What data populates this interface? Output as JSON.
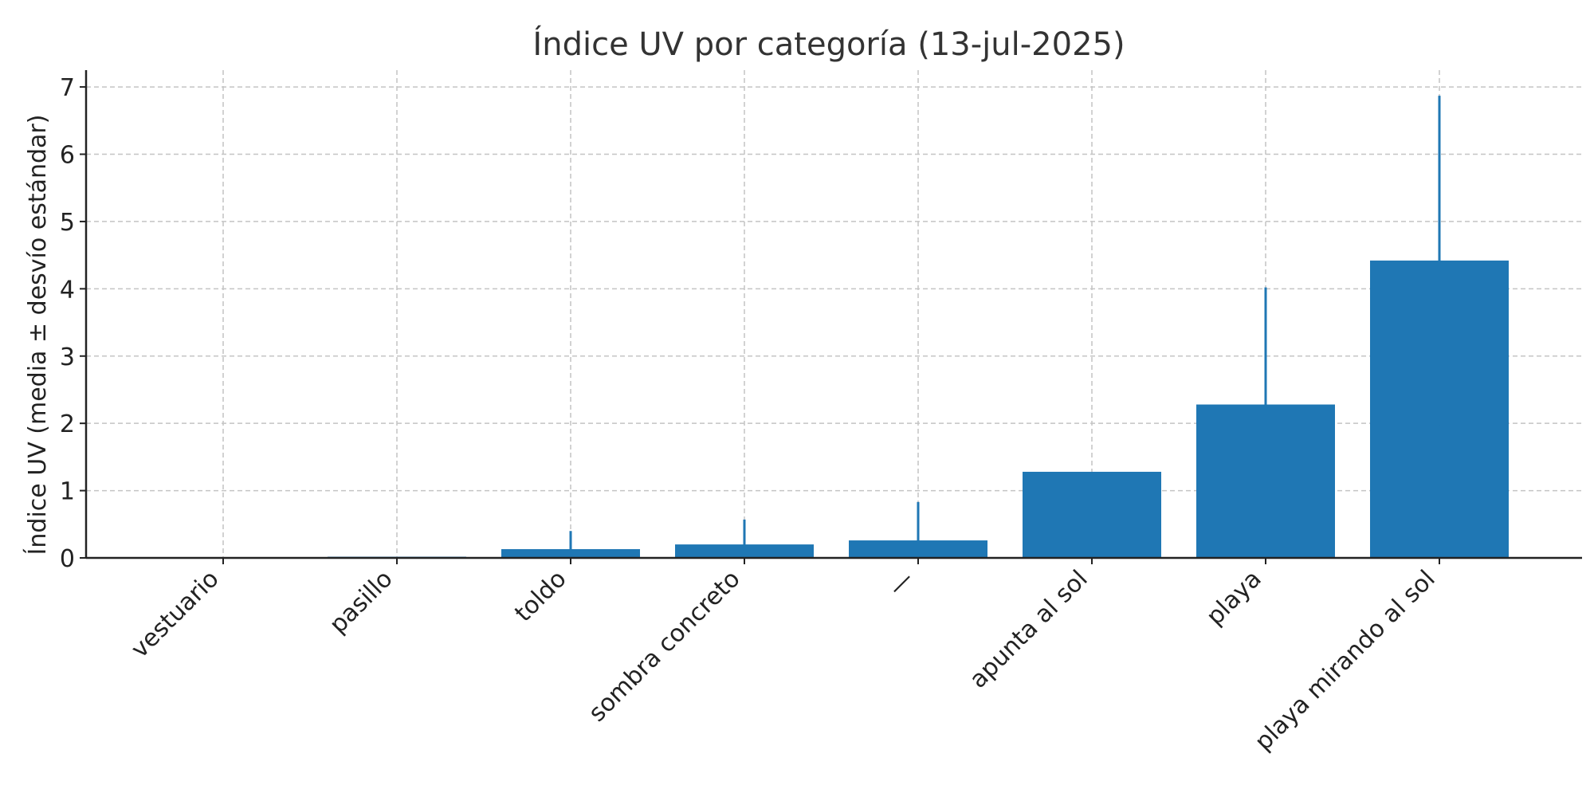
{
  "chart_data": {
    "type": "bar",
    "title": "Índice UV por categoría (13-jul-2025)",
    "xlabel": "",
    "ylabel": "Índice UV (media ± desvío estándar)",
    "categories": [
      "vestuario",
      "pasillo",
      "toldo",
      "sombra concreto",
      "—",
      "apunta al sol",
      "playa",
      "playa mirando al sol"
    ],
    "values": [
      0.0,
      0.01,
      0.13,
      0.2,
      0.26,
      1.28,
      2.28,
      4.42
    ],
    "errors": [
      0.0,
      0.0,
      0.27,
      0.37,
      0.57,
      0.0,
      1.74,
      2.45
    ],
    "ylim": [
      0,
      7.25
    ],
    "yticks": [
      "0",
      "1",
      "2",
      "3",
      "4",
      "5",
      "6",
      "7"
    ],
    "grid": true,
    "bar_color": "#1f77b4",
    "error_color": "#1f77b4"
  }
}
